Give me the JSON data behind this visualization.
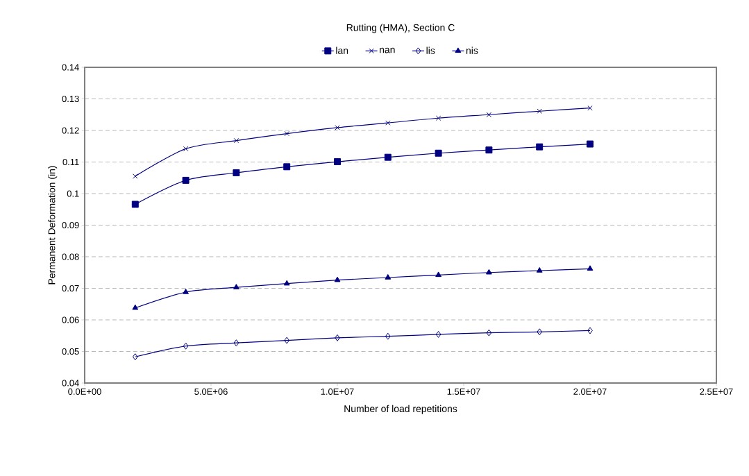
{
  "chart_data": {
    "type": "line",
    "title": "Rutting (HMA), Section C",
    "xlabel": "Number of load repetitions",
    "ylabel": "Permanent Deformation (in)",
    "x": [
      2000000,
      4000000,
      6000000,
      8000000,
      10000000,
      12000000,
      14000000,
      16000000,
      18000000,
      20000000
    ],
    "series": [
      {
        "name": "lan",
        "color": "#000080",
        "marker": "square",
        "values": [
          0.0966,
          0.1042,
          0.1066,
          0.1085,
          0.1101,
          0.1115,
          0.1128,
          0.1138,
          0.1148,
          0.1157
        ]
      },
      {
        "name": "nan",
        "color": "#000080",
        "marker": "cross",
        "values": [
          0.1055,
          0.1142,
          0.1168,
          0.119,
          0.1209,
          0.1224,
          0.1239,
          0.125,
          0.1261,
          0.1271
        ]
      },
      {
        "name": "lis",
        "color": "#000080",
        "marker": "diamond",
        "values": [
          0.0483,
          0.0517,
          0.0527,
          0.0535,
          0.0543,
          0.0548,
          0.0554,
          0.0559,
          0.0562,
          0.0566
        ]
      },
      {
        "name": "nis",
        "color": "#000080",
        "marker": "triangle",
        "values": [
          0.0638,
          0.0688,
          0.0703,
          0.0715,
          0.0726,
          0.0734,
          0.0742,
          0.075,
          0.0756,
          0.0762
        ]
      }
    ],
    "xlim": [
      0,
      25000000
    ],
    "xticks": [
      {
        "value": 0,
        "label": "0.0E+00"
      },
      {
        "value": 5000000,
        "label": "5.0E+06"
      },
      {
        "value": 10000000,
        "label": "1.0E+07"
      },
      {
        "value": 15000000,
        "label": "1.5E+07"
      },
      {
        "value": 20000000,
        "label": "2.0E+07"
      },
      {
        "value": 25000000,
        "label": "2.5E+07"
      }
    ],
    "ylim": [
      0.04,
      0.14
    ],
    "yticks": [
      0.04,
      0.05,
      0.06,
      0.07,
      0.08,
      0.09,
      0.1,
      0.11,
      0.12,
      0.13,
      0.14
    ],
    "grid": "y",
    "legend": "top",
    "line_style": "solid"
  }
}
